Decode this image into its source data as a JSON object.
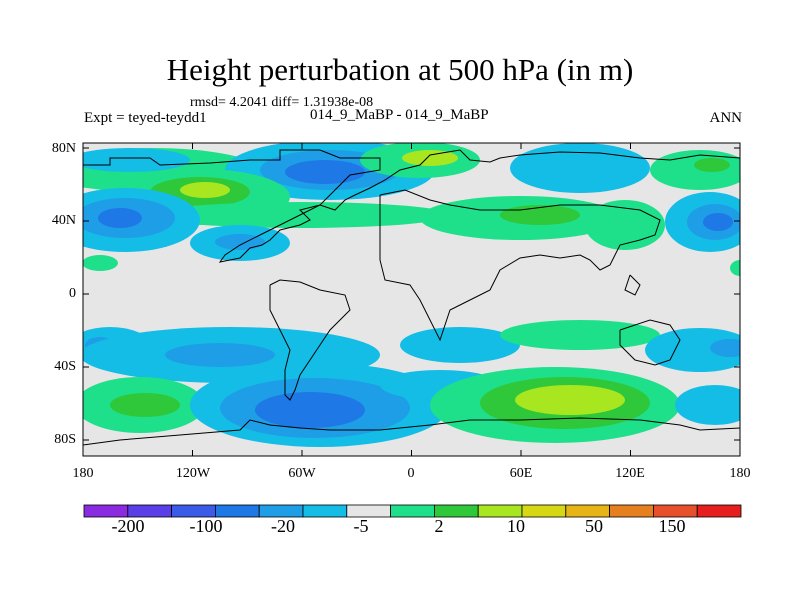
{
  "title": "Height perturbation at 500 hPa (in m)",
  "rmsd_line": "rmsd= 4.2041 diff= 1.31938e-08",
  "left_title": "Expt = teyed-teydd1",
  "center_title": "014_9_MaBP - 014_9_MaBP",
  "right_title": "ANN",
  "lat_labels": [
    "80N",
    "40N",
    "0",
    "40S",
    "80S"
  ],
  "lon_labels": [
    "180",
    "120W",
    "60W",
    "0",
    "60E",
    "120E",
    "180"
  ],
  "colorbar": {
    "labels": [
      "-200",
      "-100",
      "-20",
      "-5",
      "2",
      "10",
      "50",
      "150"
    ],
    "colors": [
      "#8a2be2",
      "#5a3ee8",
      "#3a5ae8",
      "#1e78e6",
      "#1e9ee6",
      "#14bde6",
      "#e6e6e6",
      "#1ee08a",
      "#2ec83a",
      "#a8e620",
      "#d7d814",
      "#e6b414",
      "#e6801e",
      "#e6502a",
      "#e61e1e"
    ]
  },
  "palette": {
    "background": "#e6e6e6",
    "cyan": "#14bde6",
    "light_blue": "#1e9ee6",
    "blue": "#1e78e6",
    "green": "#1ee08a",
    "mid_green": "#2ec83a",
    "yellow_green": "#a8e620"
  }
}
